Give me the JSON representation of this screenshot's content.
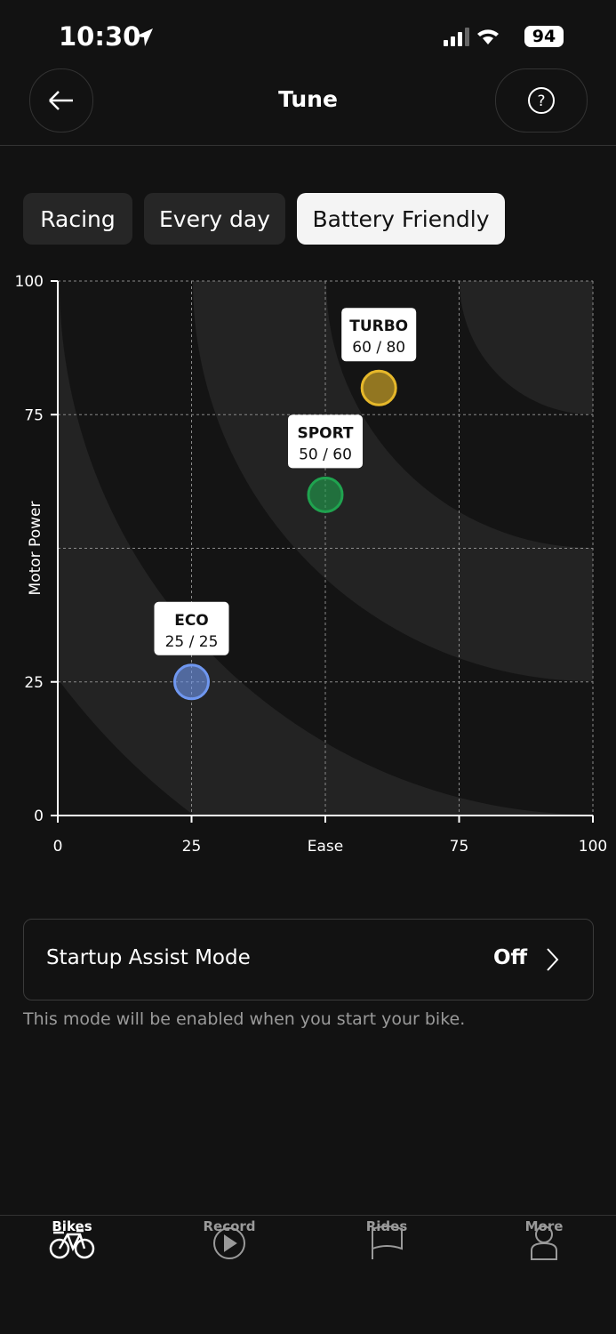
{
  "status_bar": {
    "time": "10:30",
    "battery": "94"
  },
  "header": {
    "title": "Tune"
  },
  "tabs": [
    "Racing",
    "Every day",
    "Battery Friendly"
  ],
  "active_tab": 2,
  "chart_data": {
    "type": "scatter",
    "y_label": "Motor Power",
    "xlim": [
      0,
      100
    ],
    "ylim": [
      0,
      100
    ],
    "xticks": [
      0,
      25,
      {
        "value": 50,
        "label": "Ease"
      },
      75,
      100
    ],
    "yticks": [
      0,
      25,
      75,
      100
    ],
    "xgrid": [
      25,
      50,
      75,
      100
    ],
    "ygrid": [
      25,
      50,
      75,
      100
    ],
    "series": [
      {
        "name": "ECO",
        "color": "#6f97f0",
        "x": [
          25
        ],
        "values": [
          25
        ],
        "value_labels": [
          "25 / 25"
        ]
      },
      {
        "name": "SPORT",
        "color": "#1fa34f",
        "x": [
          50
        ],
        "values": [
          60
        ],
        "value_labels": [
          "50 / 60"
        ]
      },
      {
        "name": "TURBO",
        "color": "#e6b82a",
        "x": [
          60
        ],
        "values": [
          80
        ],
        "value_labels": [
          "60 / 80"
        ]
      }
    ]
  },
  "startup": {
    "label": "Startup Assist Mode",
    "value": "Off",
    "note": "This mode will be enabled when you start your bike."
  },
  "nav": [
    "Bikes",
    "Record",
    "Rides",
    "More"
  ],
  "active_nav": 0
}
